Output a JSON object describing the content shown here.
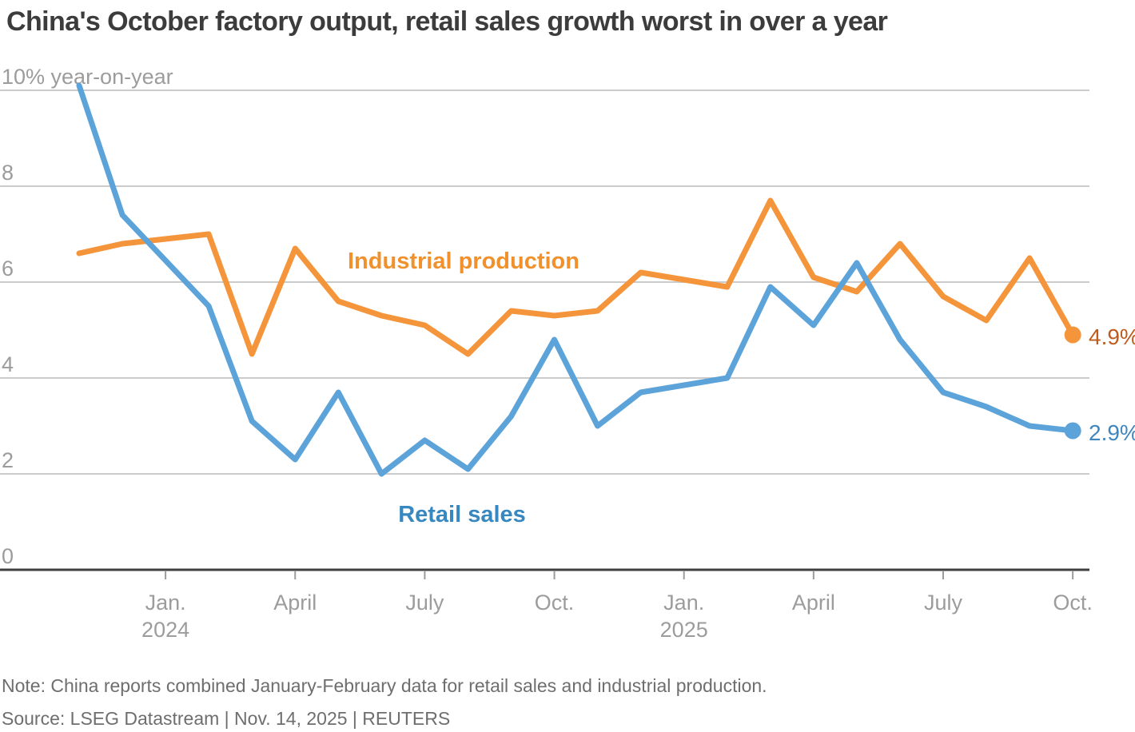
{
  "title": "China's October factory output, retail sales growth worst in over a year",
  "footnotes": {
    "note": "Note: China reports combined January-February data for retail sales and industrial production.",
    "source": "Source: LSEG Datastream | Nov. 14, 2025 | REUTERS"
  },
  "colors": {
    "background": "#FFFFFF",
    "title_text": "#3C3C3C",
    "axis_text": "#9C9C9C",
    "footnote_text": "#6E6E6E",
    "gridline": "#CBCBCB",
    "axis_line": "#3F3F3F",
    "industrial_orange": "#F5953B",
    "retail_blue": "#5CA3D9"
  },
  "chart_data": {
    "type": "line",
    "title": "China's October factory output, retail sales growth worst in over a year",
    "y_axis": {
      "top_label": "10% year-on-year",
      "ticks": [
        8,
        6,
        4,
        2,
        0
      ],
      "min": 0,
      "max": 10,
      "grid": true
    },
    "x_axis": {
      "ticks": [
        {
          "label": "Jan.",
          "year_label": "2024",
          "month_offset": 2
        },
        {
          "label": "April",
          "month_offset": 5
        },
        {
          "label": "July",
          "month_offset": 8
        },
        {
          "label": "Oct.",
          "month_offset": 11
        },
        {
          "label": "Jan.",
          "year_label": "2025",
          "month_offset": 14
        },
        {
          "label": "April",
          "month_offset": 17
        },
        {
          "label": "July",
          "month_offset": 20
        },
        {
          "label": "Oct.",
          "month_offset": 23
        }
      ]
    },
    "categories": [
      "Nov 2023",
      "Dec 2023",
      "Jan-Feb 2024",
      "Mar 2024",
      "Apr 2024",
      "May 2024",
      "Jun 2024",
      "Jul 2024",
      "Aug 2024",
      "Sep 2024",
      "Oct 2024",
      "Nov 2024",
      "Dec 2024",
      "Jan-Feb 2025",
      "Mar 2025",
      "Apr 2025",
      "May 2025",
      "Jun 2025",
      "Jul 2025",
      "Aug 2025",
      "Sep 2025",
      "Oct 2025"
    ],
    "month_offsets": [
      0,
      1,
      3,
      4,
      5,
      6,
      7,
      8,
      9,
      10,
      11,
      12,
      13,
      15,
      16,
      17,
      18,
      19,
      20,
      21,
      22,
      23
    ],
    "series": [
      {
        "name": "Industrial production",
        "line_color": "#F5953B",
        "name_label_color": "#F0912D",
        "end_label": "4.9%",
        "end_label_color": "#BE5B1E",
        "values": [
          6.6,
          6.8,
          7.0,
          4.5,
          6.7,
          5.6,
          5.3,
          5.1,
          4.5,
          5.4,
          5.3,
          5.4,
          6.2,
          5.9,
          7.7,
          6.1,
          5.8,
          6.8,
          5.7,
          5.2,
          6.5,
          4.9
        ]
      },
      {
        "name": "Retail sales",
        "line_color": "#5CA3D9",
        "name_label_color": "#3787C0",
        "end_label": "2.9%",
        "end_label_color": "#3E86BF",
        "values": [
          10.1,
          7.4,
          5.5,
          3.1,
          2.3,
          3.7,
          2.0,
          2.7,
          2.1,
          3.2,
          4.8,
          3.0,
          3.7,
          4.0,
          5.9,
          5.1,
          6.4,
          4.8,
          3.7,
          3.4,
          3.0,
          2.9
        ]
      }
    ]
  }
}
